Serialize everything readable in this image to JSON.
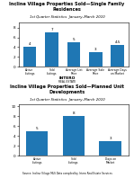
{
  "chart_data": [
    {
      "type": "bar",
      "title": "Incline Village Properties Sold—Single Family Residences",
      "subtitle": "1st Quarter Statistics  January–March 2010",
      "categories": [
        "Active\nListings",
        "Sold\nListings",
        "Average List\nPrice",
        "Average Sale\nPrice",
        "Average Days\non Market"
      ],
      "values": [
        4,
        7,
        5,
        3,
        4.5
      ],
      "ylim": [
        0,
        9.1
      ],
      "yticks": [
        0,
        2,
        4,
        6,
        8
      ],
      "grid": false,
      "data_labels": true
    },
    {
      "type": "bar",
      "title": "Incline Village Properties Sold—Planned Unit Developments",
      "subtitle": "1st Quarter Statistics  January–March 2010",
      "categories": [
        "Active\nListings",
        "Sold\nListings",
        "Days on\nMarket"
      ],
      "values": [
        5,
        8,
        3
      ],
      "ylim": [
        0,
        10.4
      ],
      "yticks": [
        0,
        2,
        4,
        6,
        8,
        10
      ],
      "grid": false,
      "data_labels": true
    }
  ],
  "annotations": [
    "INTERO",
    "REAL ESTATE",
    "Source: Incline Village MLS Data compiled by Intero Real Estate Services"
  ]
}
